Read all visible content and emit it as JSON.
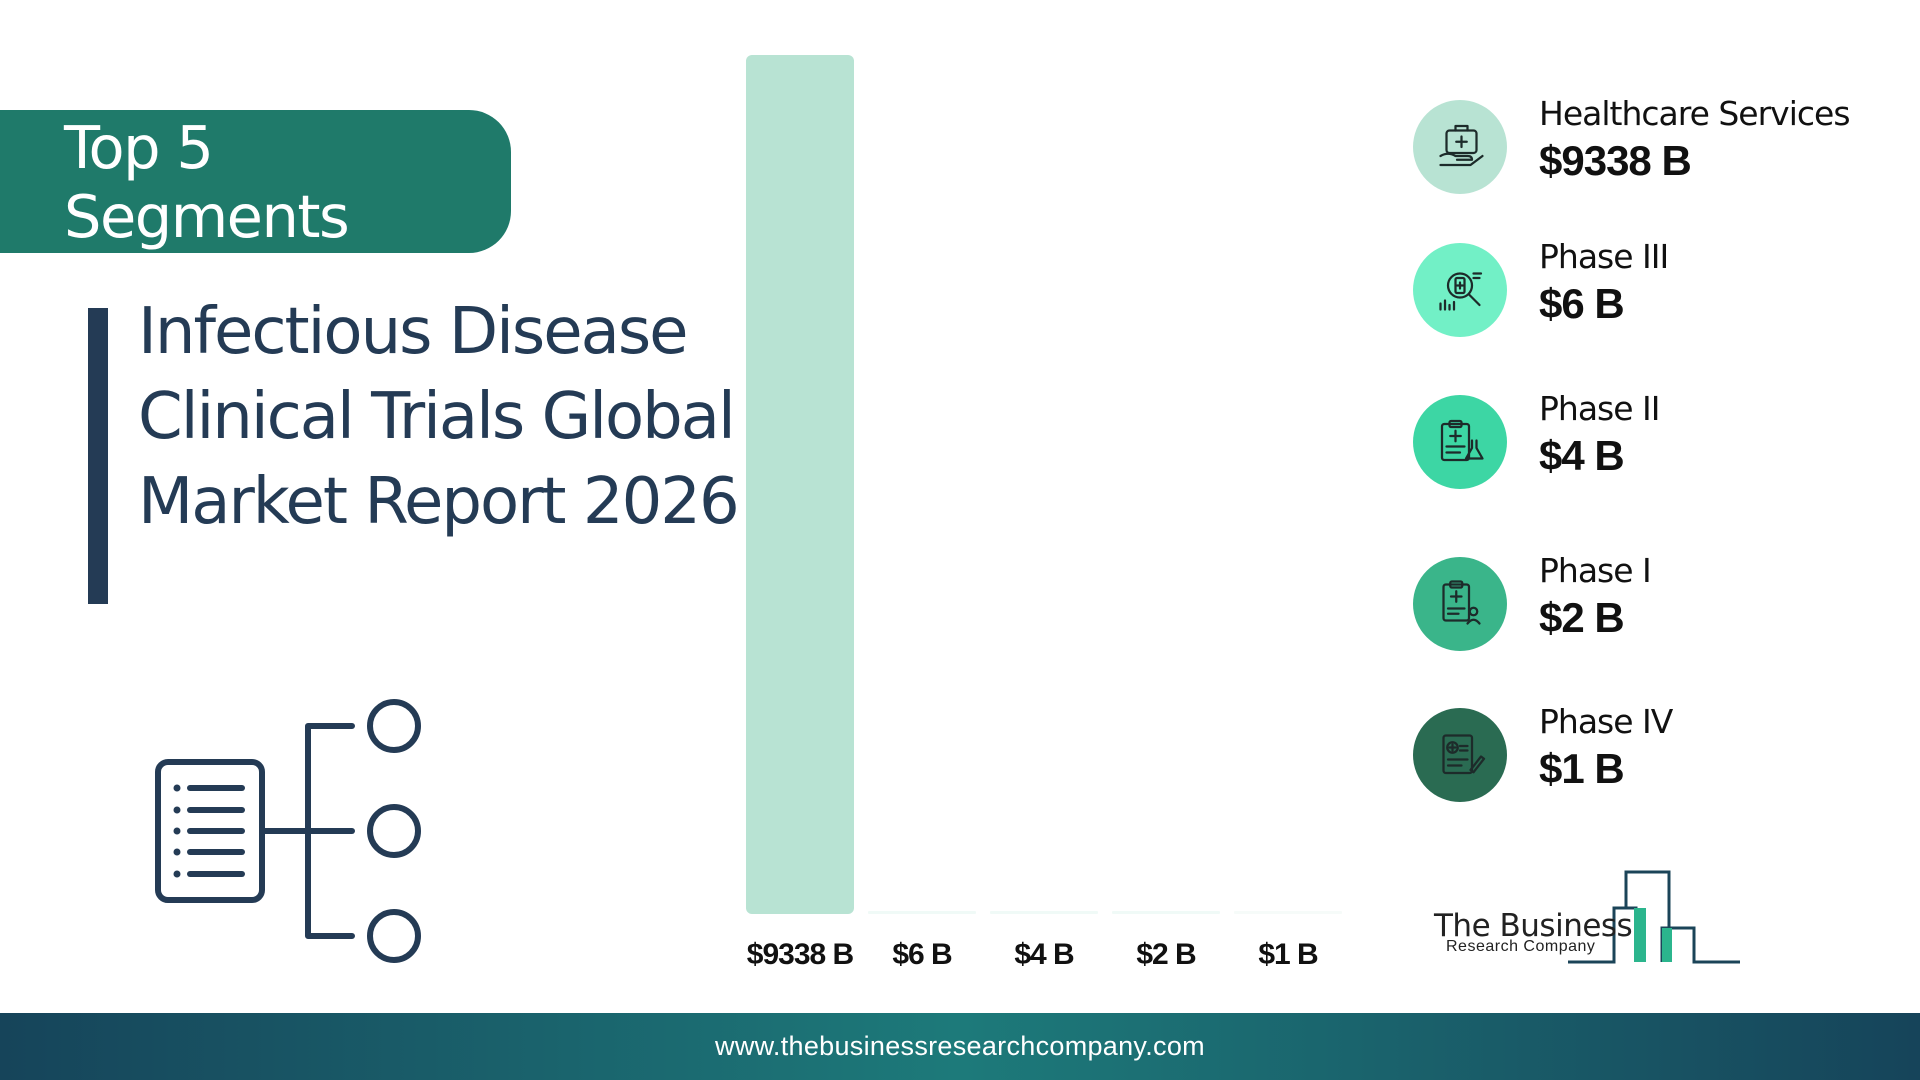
{
  "badge": {
    "label": "Top 5 Segments"
  },
  "report": {
    "title_lines": [
      "Infectious Disease",
      "Clinical Trials Global",
      "Market Report 2026"
    ]
  },
  "chart_data": {
    "type": "bar",
    "title": "",
    "xlabel": "",
    "ylabel": "",
    "categories": [
      "Healthcare Services",
      "Phase III",
      "Phase II",
      "Phase I",
      "Phase IV"
    ],
    "values": [
      9338,
      6,
      4,
      2,
      1
    ],
    "value_labels": [
      "$9338 B",
      "$6 B",
      "$4 B",
      "$2 B",
      "$1 B"
    ],
    "unit": "$B",
    "ylim": [
      0,
      9338
    ],
    "grid": false,
    "bar_colors": [
      "#b8e3d3",
      "#f0faf7",
      "#f0faf7",
      "#f0faf7",
      "#f6fbf9"
    ]
  },
  "legend": [
    {
      "name": "Healthcare Services",
      "value": "$9338 B",
      "color": "#b8e3d3",
      "icon": "hand-medical-kit-icon"
    },
    {
      "name": "Phase III",
      "value": "$6 B",
      "color": "#72f0c6",
      "icon": "magnifier-vial-icon"
    },
    {
      "name": "Phase II",
      "value": "$4 B",
      "color": "#3dd6a4",
      "icon": "clipboard-flask-icon"
    },
    {
      "name": "Phase I",
      "value": "$2 B",
      "color": "#3ab58a",
      "icon": "clipboard-people-icon"
    },
    {
      "name": "Phase IV",
      "value": "$1 B",
      "color": "#2a6b52",
      "icon": "report-pen-icon"
    }
  ],
  "logo": {
    "line1": "The Business",
    "line2": "Research Company"
  },
  "footer": {
    "url": "www.thebusinessresearchcompany.com"
  },
  "colors": {
    "accent": "#1f7a6a",
    "navy": "#243b55"
  }
}
